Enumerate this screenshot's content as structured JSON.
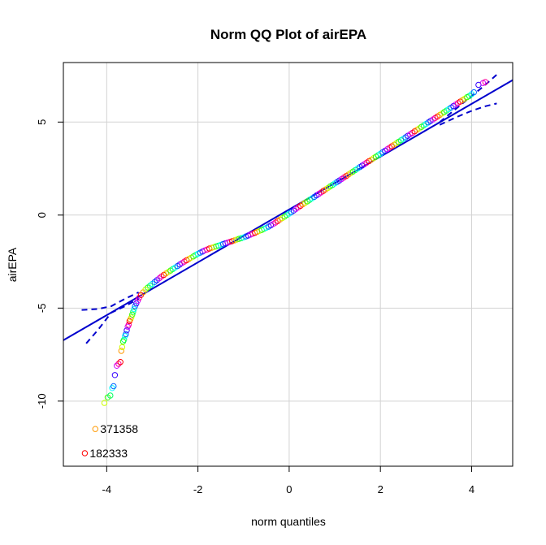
{
  "chart_data": {
    "type": "scatter",
    "title": "Norm QQ Plot of airEPA",
    "xlabel": "norm quantiles",
    "ylabel": "airEPA",
    "xlim": [
      -4.95,
      4.9
    ],
    "ylim": [
      -13.5,
      8.2
    ],
    "x_ticks": [
      -4,
      -2,
      0,
      2,
      4
    ],
    "y_ticks": [
      -10,
      -5,
      0,
      5
    ],
    "grid": true,
    "reference_line": {
      "slope": 1.42,
      "intercept": 0.3
    },
    "confidence_upper": [
      [
        -4.55,
        -5.1
      ],
      [
        -4.2,
        -5.05
      ],
      [
        -3.9,
        -4.9
      ],
      [
        -3.6,
        -4.5
      ],
      [
        -3.3,
        -4.15
      ],
      [
        3.3,
        5.0
      ],
      [
        3.7,
        5.8
      ],
      [
        4.0,
        6.4
      ],
      [
        4.3,
        7.0
      ],
      [
        4.55,
        7.55
      ]
    ],
    "confidence_lower": [
      [
        -4.45,
        -6.9
      ],
      [
        -4.2,
        -6.2
      ],
      [
        -3.9,
        -5.25
      ],
      [
        -3.6,
        -4.9
      ],
      [
        -3.3,
        -4.5
      ],
      [
        3.3,
        4.85
      ],
      [
        3.7,
        5.3
      ],
      [
        4.0,
        5.6
      ],
      [
        4.3,
        5.85
      ],
      [
        4.55,
        6.0
      ]
    ],
    "points": [
      [
        -4.48,
        -12.8
      ],
      [
        -4.25,
        -11.5
      ],
      [
        -4.05,
        -10.1
      ],
      [
        -3.98,
        -9.8
      ],
      [
        -3.92,
        -9.7
      ],
      [
        -3.88,
        -9.3
      ],
      [
        -3.85,
        -9.2
      ],
      [
        -3.82,
        -8.6
      ],
      [
        -3.78,
        -8.1
      ],
      [
        -3.74,
        -8.0
      ],
      [
        -3.7,
        -7.9
      ],
      [
        -3.68,
        -7.3
      ],
      [
        -3.66,
        -7.1
      ],
      [
        -3.64,
        -6.8
      ],
      [
        -3.62,
        -6.7
      ],
      [
        -3.6,
        -6.5
      ],
      [
        -3.58,
        -6.4
      ],
      [
        -3.56,
        -6.2
      ],
      [
        -3.54,
        -6.0
      ],
      [
        -3.52,
        -5.9
      ],
      [
        -3.5,
        -5.7
      ],
      [
        -3.48,
        -5.6
      ],
      [
        -3.46,
        -5.5
      ],
      [
        -3.44,
        -5.35
      ],
      [
        -3.42,
        -5.2
      ],
      [
        -3.4,
        -5.05
      ],
      [
        -3.38,
        -4.9
      ],
      [
        -3.35,
        -4.75
      ],
      [
        -3.32,
        -4.6
      ],
      [
        -3.29,
        -4.45
      ],
      [
        -3.25,
        -4.3
      ],
      [
        -3.2,
        -4.15
      ],
      [
        -3.15,
        -4.0
      ],
      [
        -3.1,
        -3.9
      ],
      [
        -3.05,
        -3.8
      ],
      [
        -3.0,
        -3.7
      ],
      [
        -2.95,
        -3.6
      ],
      [
        -2.9,
        -3.5
      ],
      [
        -2.85,
        -3.4
      ],
      [
        -2.8,
        -3.3
      ],
      [
        -2.75,
        -3.22
      ],
      [
        -2.7,
        -3.14
      ],
      [
        -2.65,
        -3.06
      ],
      [
        -2.6,
        -2.98
      ],
      [
        -2.55,
        -2.9
      ],
      [
        -2.5,
        -2.82
      ],
      [
        -2.45,
        -2.74
      ],
      [
        -2.4,
        -2.66
      ],
      [
        -2.35,
        -2.58
      ],
      [
        -2.3,
        -2.5
      ],
      [
        -2.25,
        -2.43
      ],
      [
        -2.2,
        -2.36
      ],
      [
        -2.15,
        -2.29
      ],
      [
        -2.1,
        -2.22
      ],
      [
        -2.05,
        -2.15
      ],
      [
        -2.0,
        -2.08
      ],
      [
        -1.95,
        -2.02
      ],
      [
        -1.9,
        -1.96
      ],
      [
        -1.85,
        -1.9
      ],
      [
        -1.8,
        -1.85
      ],
      [
        -1.75,
        -1.8
      ],
      [
        -1.7,
        -1.76
      ],
      [
        -1.65,
        -1.72
      ],
      [
        -1.6,
        -1.68
      ],
      [
        -1.55,
        -1.64
      ],
      [
        -1.5,
        -1.6
      ],
      [
        -1.45,
        -1.56
      ],
      [
        -1.4,
        -1.52
      ],
      [
        -1.35,
        -1.48
      ],
      [
        -1.3,
        -1.44
      ],
      [
        -1.25,
        -1.4
      ],
      [
        -1.2,
        -1.36
      ],
      [
        -1.15,
        -1.32
      ],
      [
        -1.1,
        -1.28
      ],
      [
        -1.05,
        -1.24
      ],
      [
        -1.0,
        -1.2
      ],
      [
        -0.95,
        -1.15
      ],
      [
        -0.9,
        -1.1
      ],
      [
        -0.85,
        -1.05
      ],
      [
        -0.8,
        -1.0
      ],
      [
        -0.75,
        -0.95
      ],
      [
        -0.7,
        -0.9
      ],
      [
        -0.65,
        -0.85
      ],
      [
        -0.6,
        -0.8
      ],
      [
        -0.55,
        -0.74
      ],
      [
        -0.5,
        -0.68
      ],
      [
        -0.45,
        -0.62
      ],
      [
        -0.4,
        -0.55
      ],
      [
        -0.35,
        -0.48
      ],
      [
        -0.3,
        -0.4
      ],
      [
        -0.25,
        -0.32
      ],
      [
        -0.2,
        -0.24
      ],
      [
        -0.15,
        -0.16
      ],
      [
        -0.1,
        -0.08
      ],
      [
        -0.05,
        0.0
      ],
      [
        0.0,
        0.08
      ],
      [
        0.05,
        0.16
      ],
      [
        0.1,
        0.24
      ],
      [
        0.15,
        0.33
      ],
      [
        0.2,
        0.42
      ],
      [
        0.25,
        0.5
      ],
      [
        0.3,
        0.58
      ],
      [
        0.35,
        0.66
      ],
      [
        0.4,
        0.74
      ],
      [
        0.45,
        0.82
      ],
      [
        0.5,
        0.9
      ],
      [
        0.55,
        0.98
      ],
      [
        0.6,
        1.06
      ],
      [
        0.65,
        1.14
      ],
      [
        0.7,
        1.22
      ],
      [
        0.75,
        1.3
      ],
      [
        0.8,
        1.38
      ],
      [
        0.85,
        1.46
      ],
      [
        0.9,
        1.54
      ],
      [
        0.95,
        1.62
      ],
      [
        1.0,
        1.7
      ],
      [
        1.05,
        1.78
      ],
      [
        1.1,
        1.86
      ],
      [
        1.15,
        1.94
      ],
      [
        1.2,
        2.02
      ],
      [
        1.25,
        2.1
      ],
      [
        1.3,
        2.18
      ],
      [
        1.35,
        2.26
      ],
      [
        1.4,
        2.34
      ],
      [
        1.45,
        2.42
      ],
      [
        1.5,
        2.5
      ],
      [
        1.55,
        2.58
      ],
      [
        1.6,
        2.66
      ],
      [
        1.65,
        2.74
      ],
      [
        1.7,
        2.82
      ],
      [
        1.75,
        2.9
      ],
      [
        1.8,
        2.98
      ],
      [
        1.85,
        3.06
      ],
      [
        1.9,
        3.14
      ],
      [
        1.95,
        3.22
      ],
      [
        2.0,
        3.3
      ],
      [
        2.05,
        3.38
      ],
      [
        2.1,
        3.46
      ],
      [
        2.15,
        3.54
      ],
      [
        2.2,
        3.62
      ],
      [
        2.25,
        3.7
      ],
      [
        2.3,
        3.78
      ],
      [
        2.35,
        3.86
      ],
      [
        2.4,
        3.94
      ],
      [
        2.45,
        4.02
      ],
      [
        2.5,
        4.1
      ],
      [
        2.55,
        4.18
      ],
      [
        2.6,
        4.26
      ],
      [
        2.65,
        4.34
      ],
      [
        2.7,
        4.42
      ],
      [
        2.75,
        4.5
      ],
      [
        2.8,
        4.58
      ],
      [
        2.85,
        4.66
      ],
      [
        2.9,
        4.74
      ],
      [
        2.95,
        4.82
      ],
      [
        3.0,
        4.9
      ],
      [
        3.05,
        4.98
      ],
      [
        3.1,
        5.06
      ],
      [
        3.15,
        5.14
      ],
      [
        3.2,
        5.22
      ],
      [
        3.25,
        5.3
      ],
      [
        3.3,
        5.38
      ],
      [
        3.35,
        5.46
      ],
      [
        3.4,
        5.54
      ],
      [
        3.45,
        5.62
      ],
      [
        3.5,
        5.7
      ],
      [
        3.55,
        5.78
      ],
      [
        3.6,
        5.86
      ],
      [
        3.65,
        5.94
      ],
      [
        3.7,
        6.02
      ],
      [
        3.75,
        6.1
      ],
      [
        3.8,
        6.18
      ],
      [
        3.85,
        6.26
      ],
      [
        3.9,
        6.34
      ],
      [
        3.95,
        6.4
      ],
      [
        4.0,
        6.5
      ],
      [
        4.05,
        6.6
      ],
      [
        4.15,
        7.0
      ],
      [
        4.25,
        7.1
      ],
      [
        4.3,
        7.15
      ]
    ],
    "point_colors": [
      "#ff0000",
      "#ff9900",
      "#ccff00",
      "#33ff00",
      "#00ff66",
      "#00ffff",
      "#0066ff",
      "#3300ff",
      "#cc00ff",
      "#ff0099"
    ],
    "labels": [
      {
        "text": "371358",
        "x": -4.25,
        "y": -11.5
      },
      {
        "text": "182333",
        "x": -4.48,
        "y": -12.8
      }
    ],
    "line_color": "#0000cd"
  }
}
